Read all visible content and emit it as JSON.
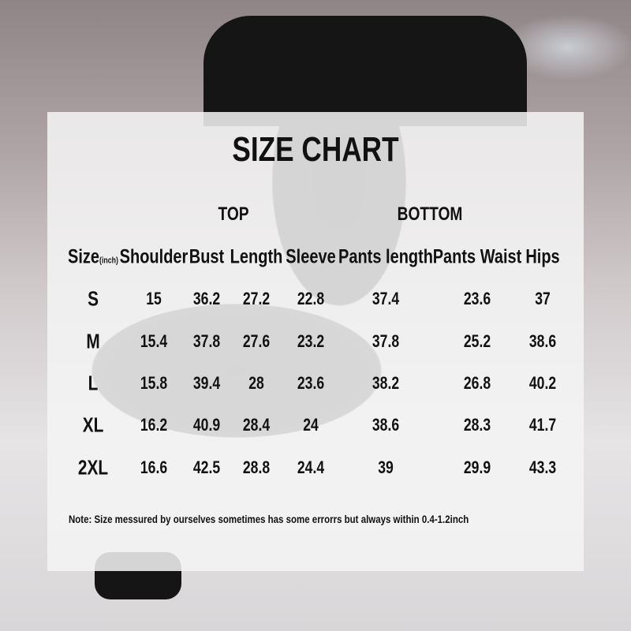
{
  "title": "SIZE CHART",
  "groups": {
    "top": "TOP",
    "bottom": "BOTTOM"
  },
  "headers": {
    "size": "Size",
    "unit": "(inch)",
    "shoulder": "Shoulder",
    "bust": "Bust",
    "length": "Length",
    "sleeve": "Sleeve",
    "pants_length": "Pants length",
    "pants_waist": "Pants Waist",
    "hips": "Hips"
  },
  "rows": [
    {
      "size": "S",
      "shoulder": "15",
      "bust": "36.2",
      "length": "27.2",
      "sleeve": "22.8",
      "pants_length": "37.4",
      "pants_waist": "23.6",
      "hips": "37"
    },
    {
      "size": "M",
      "shoulder": "15.4",
      "bust": "37.8",
      "length": "27.6",
      "sleeve": "23.2",
      "pants_length": "37.8",
      "pants_waist": "25.2",
      "hips": "38.6"
    },
    {
      "size": "L",
      "shoulder": "15.8",
      "bust": "39.4",
      "length": "28",
      "sleeve": "23.6",
      "pants_length": "38.2",
      "pants_waist": "26.8",
      "hips": "40.2"
    },
    {
      "size": "XL",
      "shoulder": "16.2",
      "bust": "40.9",
      "length": "28.4",
      "sleeve": "24",
      "pants_length": "38.6",
      "pants_waist": "28.3",
      "hips": "41.7"
    },
    {
      "size": "2XL",
      "shoulder": "16.6",
      "bust": "42.5",
      "length": "28.8",
      "sleeve": "24.4",
      "pants_length": "39",
      "pants_waist": "29.9",
      "hips": "43.3"
    }
  ],
  "note": "Note:  Size messured by ourselves sometimes has some errorrs but always within 0.4-1.2inch"
}
